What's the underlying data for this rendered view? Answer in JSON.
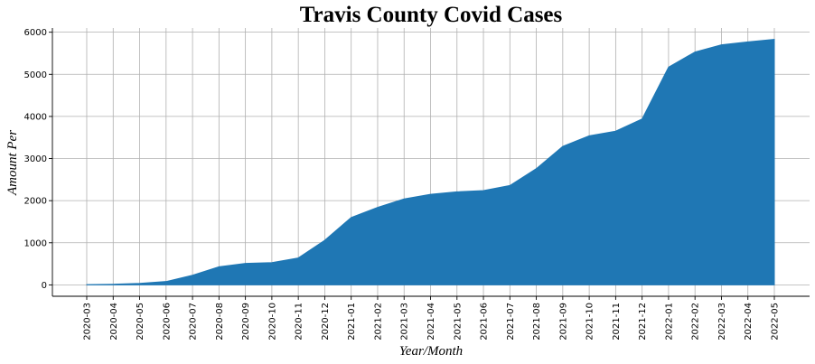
{
  "chart_data": {
    "type": "area",
    "title": "Travis County Covid Cases",
    "xlabel": "Year/Month",
    "ylabel": "Amount Per",
    "x": [
      "2020-03",
      "2020-04",
      "2020-05",
      "2020-06",
      "2020-07",
      "2020-08",
      "2020-09",
      "2020-10",
      "2020-11",
      "2020-12",
      "2021-01",
      "2021-02",
      "2021-03",
      "2021-04",
      "2021-05",
      "2021-06",
      "2021-07",
      "2021-08",
      "2021-09",
      "2021-10",
      "2021-11",
      "2021-12",
      "2022-01",
      "2022-02",
      "2022-03",
      "2022-04",
      "2022-05"
    ],
    "values": [
      5,
      15,
      35,
      80,
      230,
      430,
      510,
      530,
      640,
      1060,
      1600,
      1840,
      2040,
      2150,
      2210,
      2240,
      2360,
      2760,
      3290,
      3540,
      3650,
      3940,
      5170,
      5530,
      5700,
      5770,
      5830
    ],
    "ylim": [
      -270,
      6100
    ],
    "yticks": [
      0,
      1000,
      2000,
      3000,
      4000,
      5000,
      6000
    ],
    "grid": true,
    "color": "#1f77b4"
  }
}
